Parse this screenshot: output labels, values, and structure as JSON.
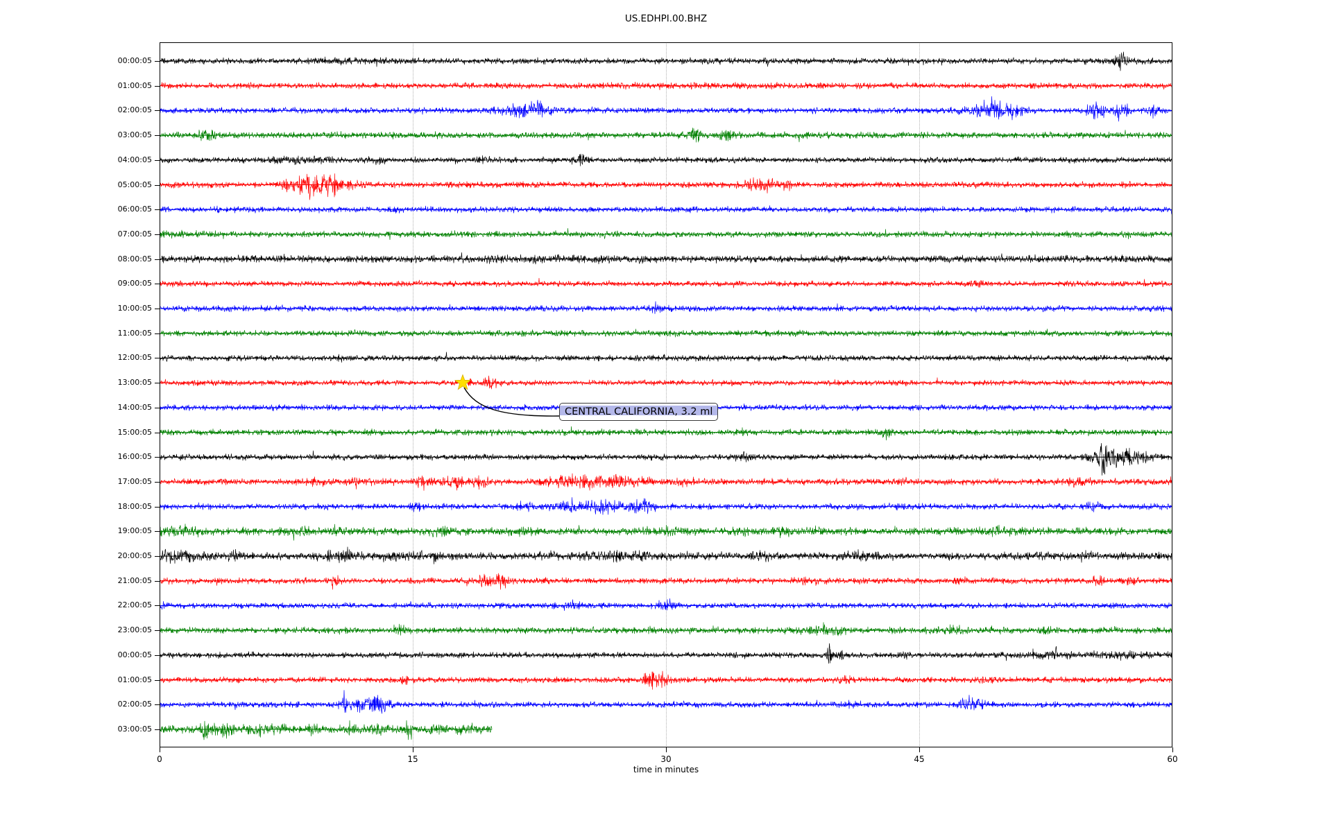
{
  "title": "US.EDHPI.00.BHZ",
  "xlabel": "time in minutes",
  "annotation": {
    "text": "CENTRAL CALIFORNIA, 3.2 ml",
    "star_minute": 17.96,
    "star_row_index": 13
  },
  "colors": {
    "grid": "#b0b0b0",
    "star": "#ffdf00",
    "star_edge": "#d9b000",
    "leader_line": "#000000",
    "annotation_band": "#b4b8ea",
    "trace_black": "#000000",
    "trace_red": "#ff0000",
    "trace_blue": "#0000ff",
    "trace_green": "#008000"
  },
  "chart_data": {
    "type": "line",
    "subtype": "helicorder-seismogram",
    "title": "US.EDHPI.00.BHZ",
    "xlabel": "time in minutes",
    "xlim": [
      0,
      60
    ],
    "xticks": [
      0,
      15,
      30,
      45,
      60
    ],
    "grid": "vertical-dotted",
    "rows": [
      {
        "label": "00:00:05",
        "color": "#000000",
        "base": 4.5,
        "events": [
          {
            "t": 56.9,
            "w": 0.25,
            "a": 13
          },
          {
            "t": 12,
            "w": 3,
            "a": 0.8
          }
        ]
      },
      {
        "label": "01:00:05",
        "color": "#ff0000",
        "base": 4.6,
        "events": [
          {
            "t": 30,
            "w": 6,
            "a": 0.5
          }
        ]
      },
      {
        "label": "02:00:05",
        "color": "#0000ff",
        "base": 4.4,
        "events": [
          {
            "t": 21.9,
            "w": 0.9,
            "a": 12
          },
          {
            "t": 49.5,
            "w": 1.0,
            "a": 13
          },
          {
            "t": 55.5,
            "w": 0.35,
            "a": 12
          },
          {
            "t": 57.0,
            "w": 0.3,
            "a": 12
          },
          {
            "t": 58.8,
            "w": 0.3,
            "a": 6
          }
        ]
      },
      {
        "label": "03:00:05",
        "color": "#008000",
        "base": 4.8,
        "events": [
          {
            "t": 2.9,
            "w": 0.4,
            "a": 5
          },
          {
            "t": 31.8,
            "w": 0.25,
            "a": 9
          },
          {
            "t": 33.7,
            "w": 0.3,
            "a": 6
          }
        ]
      },
      {
        "label": "04:00:05",
        "color": "#000000",
        "base": 4.2,
        "events": [
          {
            "t": 8.4,
            "w": 1.2,
            "a": 4
          },
          {
            "t": 25.0,
            "w": 0.2,
            "a": 9
          },
          {
            "t": 13,
            "w": 0.4,
            "a": 3
          },
          {
            "t": 19,
            "w": 0.4,
            "a": 3
          }
        ]
      },
      {
        "label": "05:00:05",
        "color": "#ff0000",
        "base": 4.5,
        "events": [
          {
            "t": 9.7,
            "w": 1.0,
            "a": 18
          },
          {
            "t": 8.2,
            "w": 0.6,
            "a": 7
          },
          {
            "t": 35.6,
            "w": 0.6,
            "a": 8
          },
          {
            "t": 37,
            "w": 0.3,
            "a": 5
          }
        ]
      },
      {
        "label": "06:00:05",
        "color": "#0000ff",
        "base": 4.4,
        "events": [
          {
            "t": 14,
            "w": 0.3,
            "a": 2
          }
        ]
      },
      {
        "label": "07:00:05",
        "color": "#008000",
        "base": 4.6,
        "events": [
          {
            "t": 17.9,
            "w": 0.4,
            "a": 3
          },
          {
            "t": 1.5,
            "w": 1,
            "a": 1.5
          }
        ]
      },
      {
        "label": "08:00:05",
        "color": "#000000",
        "base": 5.4,
        "events": [
          {
            "t": 23,
            "w": 3,
            "a": 1
          }
        ]
      },
      {
        "label": "09:00:05",
        "color": "#ff0000",
        "base": 4.2,
        "events": [
          {
            "t": 48.4,
            "w": 0.3,
            "a": 4
          }
        ]
      },
      {
        "label": "10:00:05",
        "color": "#0000ff",
        "base": 4.4,
        "events": [
          {
            "t": 29.4,
            "w": 0.3,
            "a": 2.5
          }
        ]
      },
      {
        "label": "11:00:05",
        "color": "#008000",
        "base": 4.5,
        "events": []
      },
      {
        "label": "12:00:05",
        "color": "#000000",
        "base": 4.4,
        "events": [
          {
            "t": 11,
            "w": 0.3,
            "a": 2
          }
        ]
      },
      {
        "label": "13:00:05",
        "color": "#ff0000",
        "base": 4.2,
        "events": [
          {
            "t": 19.7,
            "w": 0.3,
            "a": 8
          },
          {
            "t": 18.3,
            "w": 0.2,
            "a": 4
          }
        ]
      },
      {
        "label": "14:00:05",
        "color": "#0000ff",
        "base": 4.4,
        "events": []
      },
      {
        "label": "15:00:05",
        "color": "#008000",
        "base": 4.5,
        "events": [
          {
            "t": 43.2,
            "w": 0.25,
            "a": 6
          },
          {
            "t": 34.6,
            "w": 0.25,
            "a": 3
          }
        ]
      },
      {
        "label": "16:00:05",
        "color": "#000000",
        "base": 4.4,
        "events": [
          {
            "t": 56.0,
            "w": 0.22,
            "a": 25
          },
          {
            "t": 56.7,
            "w": 0.7,
            "a": 10
          },
          {
            "t": 57.6,
            "w": 0.4,
            "a": 7
          },
          {
            "t": 55.2,
            "w": 0.3,
            "a": 6
          },
          {
            "t": 58.6,
            "w": 0.3,
            "a": 4
          },
          {
            "t": 34.6,
            "w": 0.3,
            "a": 3.5
          }
        ]
      },
      {
        "label": "17:00:05",
        "color": "#ff0000",
        "base": 5.0,
        "events": [
          {
            "t": 9.3,
            "w": 0.3,
            "a": 6
          },
          {
            "t": 11.5,
            "w": 0.25,
            "a": 5
          },
          {
            "t": 15.6,
            "w": 0.35,
            "a": 7
          },
          {
            "t": 17.6,
            "w": 0.4,
            "a": 6
          },
          {
            "t": 19.1,
            "w": 0.3,
            "a": 6
          },
          {
            "t": 24,
            "w": 1,
            "a": 5
          },
          {
            "t": 26.5,
            "w": 1.6,
            "a": 6
          },
          {
            "t": 31,
            "w": 0.3,
            "a": 4
          },
          {
            "t": 44,
            "w": 0.3,
            "a": 3
          },
          {
            "t": 54,
            "w": 0.6,
            "a": 3
          }
        ]
      },
      {
        "label": "18:00:05",
        "color": "#0000ff",
        "base": 4.5,
        "events": [
          {
            "t": 21.6,
            "w": 0.4,
            "a": 5
          },
          {
            "t": 24.1,
            "w": 0.6,
            "a": 7
          },
          {
            "t": 26.2,
            "w": 0.8,
            "a": 8
          },
          {
            "t": 28.6,
            "w": 0.6,
            "a": 7
          },
          {
            "t": 15.2,
            "w": 0.3,
            "a": 4
          },
          {
            "t": 55.4,
            "w": 0.3,
            "a": 7
          },
          {
            "t": 44,
            "w": 0.3,
            "a": 3
          }
        ]
      },
      {
        "label": "19:00:05",
        "color": "#008000",
        "base": 5.8,
        "events": [
          {
            "t": 0.9,
            "w": 1.0,
            "a": 5
          },
          {
            "t": 8,
            "w": 0.6,
            "a": 3
          },
          {
            "t": 10.6,
            "w": 0.5,
            "a": 4
          },
          {
            "t": 16.6,
            "w": 0.4,
            "a": 3
          },
          {
            "t": 21.5,
            "w": 0.5,
            "a": 3
          },
          {
            "t": 30,
            "w": 1,
            "a": 3
          },
          {
            "t": 37,
            "w": 0.5,
            "a": 3
          },
          {
            "t": 50,
            "w": 0.8,
            "a": 2.5
          }
        ]
      },
      {
        "label": "20:00:05",
        "color": "#000000",
        "base": 5.6,
        "events": [
          {
            "t": 1.2,
            "w": 1.2,
            "a": 5
          },
          {
            "t": 4.4,
            "w": 0.2,
            "a": 6
          },
          {
            "t": 10.8,
            "w": 0.8,
            "a": 6
          },
          {
            "t": 13.8,
            "w": 0.4,
            "a": 5
          },
          {
            "t": 15.5,
            "w": 0.3,
            "a": 6
          },
          {
            "t": 16.3,
            "w": 0.3,
            "a": 5
          },
          {
            "t": 26.5,
            "w": 2.5,
            "a": 4
          },
          {
            "t": 35.5,
            "w": 0.4,
            "a": 4
          },
          {
            "t": 41.5,
            "w": 0.8,
            "a": 4
          },
          {
            "t": 52,
            "w": 0.6,
            "a": 3
          },
          {
            "t": 55,
            "w": 0.5,
            "a": 3
          }
        ]
      },
      {
        "label": "21:00:05",
        "color": "#ff0000",
        "base": 4.5,
        "events": [
          {
            "t": 10.4,
            "w": 0.12,
            "a": 14
          },
          {
            "t": 19.5,
            "w": 0.6,
            "a": 5
          },
          {
            "t": 20.3,
            "w": 0.2,
            "a": 9
          },
          {
            "t": 38.5,
            "w": 0.3,
            "a": 4
          },
          {
            "t": 47.5,
            "w": 0.3,
            "a": 3
          },
          {
            "t": 55.5,
            "w": 0.3,
            "a": 4
          },
          {
            "t": 57.5,
            "w": 0.3,
            "a": 3
          }
        ]
      },
      {
        "label": "22:00:05",
        "color": "#0000ff",
        "base": 4.4,
        "events": [
          {
            "t": 30.0,
            "w": 0.35,
            "a": 7
          },
          {
            "t": 24.5,
            "w": 0.3,
            "a": 3
          },
          {
            "t": 0.3,
            "w": 0.2,
            "a": 4
          }
        ]
      },
      {
        "label": "23:00:05",
        "color": "#008000",
        "base": 4.9,
        "events": [
          {
            "t": 14.3,
            "w": 0.15,
            "a": 8
          },
          {
            "t": 39.3,
            "w": 1.0,
            "a": 5
          },
          {
            "t": 47,
            "w": 0.5,
            "a": 3
          },
          {
            "t": 52.5,
            "w": 0.3,
            "a": 3
          }
        ]
      },
      {
        "label": "00:00:05",
        "color": "#000000",
        "base": 4.4,
        "events": [
          {
            "t": 39.7,
            "w": 0.12,
            "a": 13
          },
          {
            "t": 40.4,
            "w": 0.15,
            "a": 6
          },
          {
            "t": 53.0,
            "w": 0.15,
            "a": 9
          },
          {
            "t": 52.6,
            "w": 1.2,
            "a": 2.5
          },
          {
            "t": 57,
            "w": 1.5,
            "a": 2.5
          },
          {
            "t": 44,
            "w": 0.2,
            "a": 3
          }
        ]
      },
      {
        "label": "01:00:05",
        "color": "#ff0000",
        "base": 4.5,
        "events": [
          {
            "t": 29.6,
            "w": 0.4,
            "a": 11
          },
          {
            "t": 28.9,
            "w": 0.2,
            "a": 6
          },
          {
            "t": 14.5,
            "w": 0.3,
            "a": 4
          },
          {
            "t": 40.6,
            "w": 0.3,
            "a": 3
          },
          {
            "t": 49,
            "w": 0.3,
            "a": 3
          }
        ]
      },
      {
        "label": "02:00:05",
        "color": "#0000ff",
        "base": 4.4,
        "events": [
          {
            "t": 12.3,
            "w": 0.6,
            "a": 10
          },
          {
            "t": 13.2,
            "w": 0.4,
            "a": 8
          },
          {
            "t": 10.9,
            "w": 0.2,
            "a": 6
          },
          {
            "t": 48.1,
            "w": 0.5,
            "a": 10
          },
          {
            "t": 41,
            "w": 0.3,
            "a": 3
          }
        ]
      },
      {
        "label": "03:00:05",
        "color": "#008000",
        "base": 5.8,
        "end_minute": 19.7,
        "events": [
          {
            "t": 2.7,
            "w": 0.3,
            "a": 10
          },
          {
            "t": 3.7,
            "w": 0.4,
            "a": 8
          },
          {
            "t": 5.8,
            "w": 0.25,
            "a": 7
          },
          {
            "t": 7.0,
            "w": 0.3,
            "a": 5
          },
          {
            "t": 9.0,
            "w": 0.3,
            "a": 4
          },
          {
            "t": 11.2,
            "w": 0.3,
            "a": 5
          },
          {
            "t": 13.0,
            "w": 0.4,
            "a": 6
          },
          {
            "t": 14.8,
            "w": 0.15,
            "a": 14
          },
          {
            "t": 16.4,
            "w": 0.3,
            "a": 6
          },
          {
            "t": 18.0,
            "w": 0.3,
            "a": 4
          }
        ]
      }
    ]
  }
}
